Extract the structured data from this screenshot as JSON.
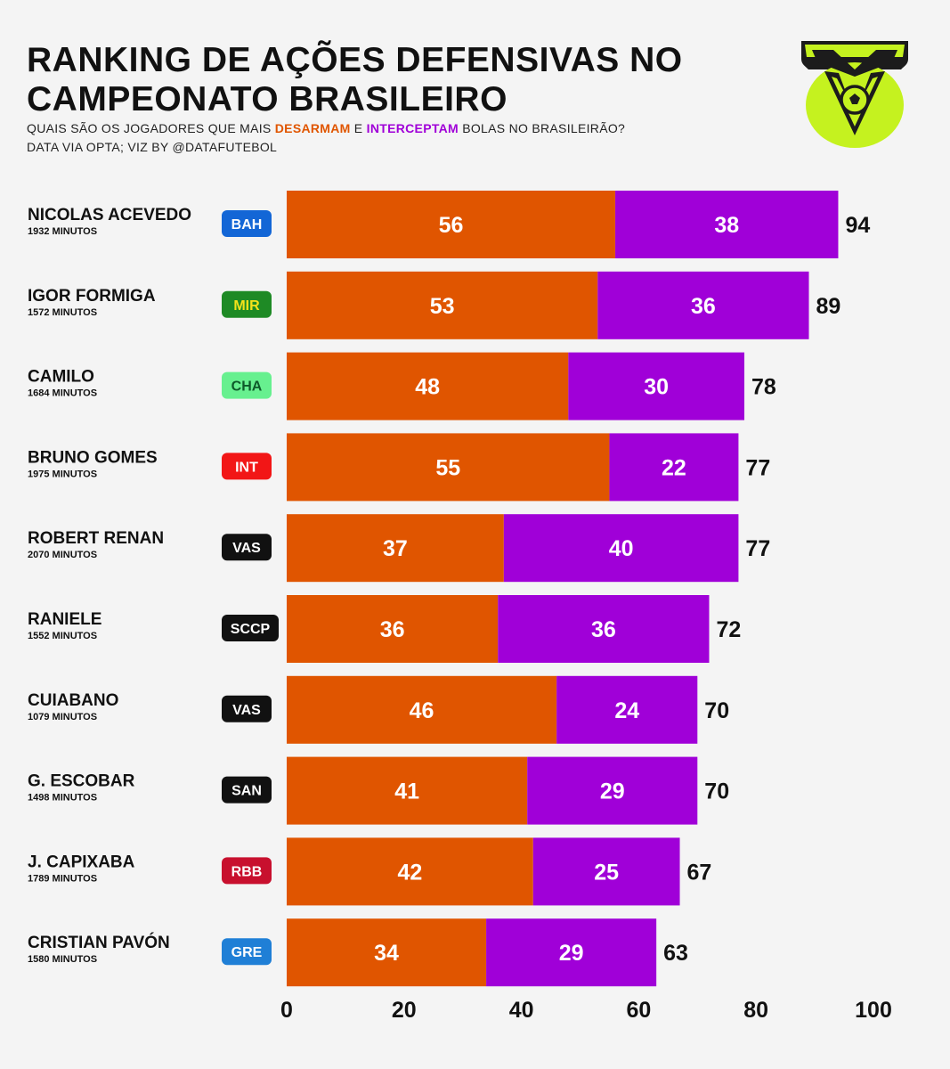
{
  "header": {
    "title": "RANKING DE AÇÕES DEFENSIVAS NO CAMPEONATO BRASILEIRO",
    "subtitle_pre": "QUAIS SÃO OS JOGADORES QUE MAIS ",
    "subtitle_hl1": "DESARMAM",
    "subtitle_mid": " E ",
    "subtitle_hl2": "INTERCEPTAM",
    "subtitle_post": " BOLAS NO BRASILEIRÃO?",
    "credit": "DATA VIA OPTA; VIZ BY @DATAFUTEBOL"
  },
  "logo": {
    "icon": "brasileirao-shield-icon",
    "color": "#c5f21f",
    "dark": "#1c1c1c"
  },
  "colors": {
    "tackles": "#e05500",
    "interceptions": "#a000d8",
    "background": "#f4f4f4"
  },
  "chart_data": {
    "type": "bar",
    "orientation": "horizontal",
    "stacked": true,
    "title": "RANKING DE AÇÕES DEFENSIVAS NO CAMPEONATO BRASILEIRO",
    "xlim": [
      0,
      100
    ],
    "xticks": [
      0,
      20,
      40,
      60,
      80,
      100
    ],
    "grid": false,
    "legend": "none",
    "series": [
      {
        "key": "desarmes",
        "color": "#e05500"
      },
      {
        "key": "interceptacoes",
        "color": "#a000d8"
      }
    ],
    "rows": [
      {
        "name": "NICOLAS ACEVEDO",
        "minutes": "1932 MINUTOS",
        "team": "BAH",
        "team_bg": "#1366d6",
        "team_fg": "#ffffff",
        "tackles": 56,
        "interceptions": 38,
        "total": 94
      },
      {
        "name": "IGOR FORMIGA",
        "minutes": "1572 MINUTOS",
        "team": "MIR",
        "team_bg": "#1e8a25",
        "team_fg": "#f5e21a",
        "tackles": 53,
        "interceptions": 36,
        "total": 89
      },
      {
        "name": "CAMILO",
        "minutes": "1684 MINUTOS",
        "team": "CHA",
        "team_bg": "#67f08f",
        "team_fg": "#0e5a2a",
        "tackles": 48,
        "interceptions": 30,
        "total": 78
      },
      {
        "name": "BRUNO GOMES",
        "minutes": "1975 MINUTOS",
        "team": "INT",
        "team_bg": "#f21616",
        "team_fg": "#ffffff",
        "tackles": 55,
        "interceptions": 22,
        "total": 77
      },
      {
        "name": "ROBERT RENAN",
        "minutes": "2070 MINUTOS",
        "team": "VAS",
        "team_bg": "#111111",
        "team_fg": "#ffffff",
        "tackles": 37,
        "interceptions": 40,
        "total": 77
      },
      {
        "name": "RANIELE",
        "minutes": "1552 MINUTOS",
        "team": "SCCP",
        "team_bg": "#111111",
        "team_fg": "#ffffff",
        "tackles": 36,
        "interceptions": 36,
        "total": 72
      },
      {
        "name": "CUIABANO",
        "minutes": "1079 MINUTOS",
        "team": "VAS",
        "team_bg": "#111111",
        "team_fg": "#ffffff",
        "tackles": 46,
        "interceptions": 24,
        "total": 70
      },
      {
        "name": "G. ESCOBAR",
        "minutes": "1498 MINUTOS",
        "team": "SAN",
        "team_bg": "#111111",
        "team_fg": "#ffffff",
        "tackles": 41,
        "interceptions": 29,
        "total": 70
      },
      {
        "name": "J. CAPIXABA",
        "minutes": "1789 MINUTOS",
        "team": "RBB",
        "team_bg": "#c8102e",
        "team_fg": "#ffffff",
        "tackles": 42,
        "interceptions": 25,
        "total": 67
      },
      {
        "name": "CRISTIAN PAVÓN",
        "minutes": "1580 MINUTOS",
        "team": "GRE",
        "team_bg": "#1f7fd6",
        "team_fg": "#ffffff",
        "tackles": 34,
        "interceptions": 29,
        "total": 63
      }
    ]
  }
}
